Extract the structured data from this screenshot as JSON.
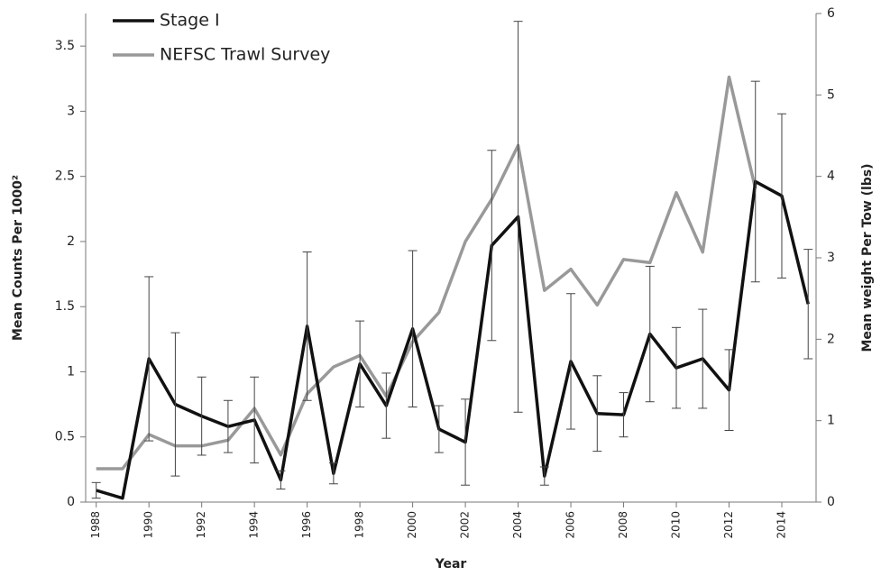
{
  "chart_data": {
    "type": "line",
    "x": [
      1988,
      1989,
      1990,
      1991,
      1992,
      1993,
      1994,
      1995,
      1996,
      1997,
      1998,
      1999,
      2000,
      2001,
      2002,
      2003,
      2004,
      2005,
      2006,
      2007,
      2008,
      2009,
      2010,
      2011,
      2012,
      2013,
      2014,
      2015
    ],
    "series": [
      {
        "name": "Stage I",
        "color": "#111111",
        "values": [
          0.09,
          0.03,
          1.1,
          0.75,
          0.66,
          0.58,
          0.63,
          0.17,
          1.35,
          0.22,
          1.06,
          0.74,
          1.33,
          0.56,
          0.46,
          1.97,
          2.19,
          0.2,
          1.08,
          0.68,
          0.67,
          1.29,
          1.03,
          1.1,
          0.86,
          2.46,
          2.35,
          1.52
        ],
        "errors": [
          0.06,
          null,
          0.63,
          0.55,
          0.3,
          0.2,
          0.33,
          0.07,
          0.57,
          0.08,
          0.33,
          0.25,
          0.6,
          0.18,
          0.33,
          0.73,
          1.5,
          0.07,
          0.52,
          0.29,
          0.17,
          0.52,
          0.31,
          0.38,
          0.31,
          0.77,
          0.63,
          0.42
        ]
      },
      {
        "name": "NEFSC Trawl Survey",
        "color": "#999999",
        "axis": "y2",
        "values": [
          0.41,
          0.41,
          0.83,
          0.69,
          0.69,
          0.76,
          1.15,
          0.58,
          1.33,
          1.66,
          1.8,
          1.3,
          1.97,
          2.33,
          3.2,
          3.72,
          4.38,
          2.6,
          2.86,
          2.42,
          2.98,
          2.94,
          3.8,
          3.07,
          5.22,
          3.85,
          null,
          null
        ]
      }
    ],
    "xlabel": "Year",
    "ylabel": "Mean Counts Per 1000²",
    "y2label": "Mean weight Per Tow (lbs)",
    "xlim": [
      1987.6,
      2015.3
    ],
    "xticks": [
      1988,
      1990,
      1992,
      1994,
      1996,
      1998,
      2000,
      2002,
      2004,
      2006,
      2008,
      2010,
      2012,
      2014
    ],
    "ylim": [
      0,
      3.75
    ],
    "yticks": [
      0,
      0.5,
      1,
      1.5,
      2,
      2.5,
      3,
      3.5
    ],
    "y2lim": [
      0,
      6
    ],
    "y2ticks": [
      0,
      1,
      2,
      3,
      4,
      5,
      6
    ],
    "legend": "upper left"
  }
}
